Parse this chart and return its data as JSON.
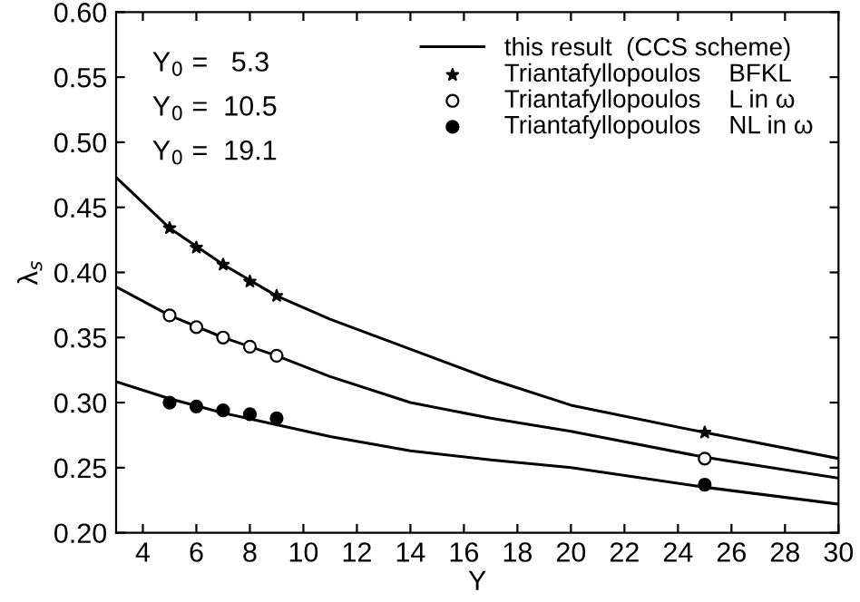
{
  "chart_data": {
    "type": "line",
    "xlabel": "Y",
    "ylabel": "λ$_{s}$",
    "annotations": [
      "Y$_{0}$ =   5.3",
      "Y$_{0}$ =  10.5",
      "Y$_{0}$ =  19.1"
    ],
    "series": [
      {
        "name": "this result  (CCS scheme)",
        "color": "#000000",
        "x": [
          3,
          5,
          7,
          9,
          11,
          14,
          17,
          20,
          25,
          30
        ],
        "values": [
          0.473,
          0.434,
          0.406,
          0.382,
          0.364,
          0.341,
          0.318,
          0.298,
          0.277,
          0.257
        ]
      },
      {
        "color": "#000000",
        "x": [
          3,
          5,
          7,
          9,
          11,
          14,
          17,
          20,
          25,
          30
        ],
        "values": [
          0.389,
          0.367,
          0.35,
          0.336,
          0.32,
          0.3,
          0.288,
          0.278,
          0.258,
          0.242
        ]
      },
      {
        "color": "#000000",
        "x": [
          3,
          5,
          7,
          9,
          11,
          14,
          17,
          20,
          25,
          30
        ],
        "values": [
          0.316,
          0.303,
          0.292,
          0.283,
          0.274,
          0.263,
          0.256,
          0.25,
          0.235,
          0.222
        ]
      },
      {
        "name": "Triantafyllopoulos    BFKL",
        "type": "scatter",
        "marker": "star",
        "color": "#000000",
        "x": [
          5,
          6,
          7,
          8,
          9,
          25
        ],
        "values": [
          0.434,
          0.419,
          0.406,
          0.393,
          0.382,
          0.277
        ]
      },
      {
        "name": "Triantafyllopoulos    L in ω",
        "type": "scatter",
        "marker": "circle",
        "color": "#ffffff",
        "x": [
          5,
          6,
          7,
          8,
          9,
          25
        ],
        "values": [
          0.367,
          0.358,
          0.35,
          0.343,
          0.336,
          0.257
        ]
      },
      {
        "name": "Triantafyllopoulos    NL in ω",
        "type": "scatter",
        "marker": "circle",
        "color": "#000000",
        "x": [
          5,
          6,
          7,
          8,
          9,
          25
        ],
        "values": [
          0.3,
          0.297,
          0.294,
          0.291,
          0.288,
          0.237
        ]
      }
    ],
    "xlim": [
      3,
      30
    ],
    "xticks": [
      4,
      6,
      8,
      10,
      12,
      14,
      16,
      18,
      20,
      22,
      24,
      26,
      28,
      30
    ],
    "ylim": [
      0.2,
      0.6
    ],
    "yticks": [
      {
        "value": 0.2,
        "label": "0.20"
      },
      {
        "value": 0.25,
        "label": "0.25"
      },
      {
        "value": 0.3,
        "label": "0.30"
      },
      {
        "value": 0.35,
        "label": "0.35"
      },
      {
        "value": 0.4,
        "label": "0.40"
      },
      {
        "value": 0.45,
        "label": "0.45"
      },
      {
        "value": 0.5,
        "label": "0.50"
      },
      {
        "value": 0.55,
        "label": "0.55"
      },
      {
        "value": 0.6,
        "label": "0.60"
      }
    ],
    "grid": false,
    "legend": "top right"
  }
}
